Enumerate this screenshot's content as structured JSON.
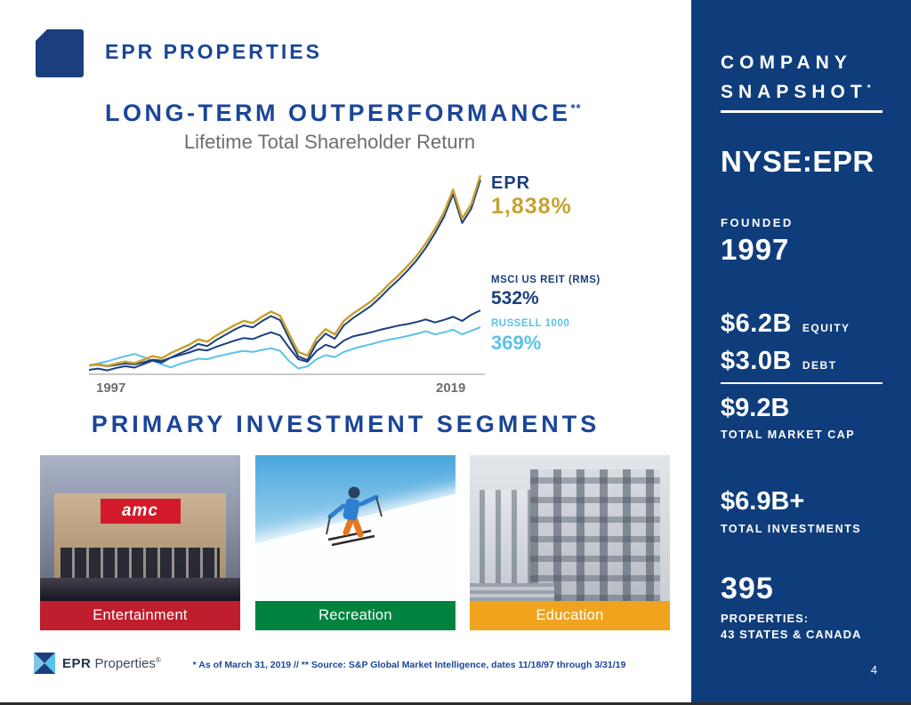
{
  "header": {
    "title": "EPR PROPERTIES"
  },
  "chart_section": {
    "title": "LONG-TERM OUTPERFORMANCE",
    "title_note": "**",
    "subtitle": "Lifetime Total Shareholder Return"
  },
  "chart_data": {
    "type": "line",
    "title": "Lifetime Total Shareholder Return",
    "x_range": [
      1997,
      2019
    ],
    "x_tick_labels": [
      "1997",
      "2019"
    ],
    "ylim": [
      -60,
      1900
    ],
    "grid": false,
    "legend_position": "right-of-line-ends",
    "series": [
      {
        "name": "EPR",
        "final_label": "1,838%",
        "final_value": 1838,
        "color": "#c7a230",
        "values": [
          0,
          12,
          -5,
          18,
          35,
          22,
          55,
          90,
          70,
          120,
          160,
          200,
          250,
          230,
          290,
          340,
          390,
          430,
          410,
          470,
          520,
          480,
          300,
          130,
          95,
          260,
          350,
          300,
          430,
          500,
          560,
          620,
          700,
          790,
          870,
          960,
          1060,
          1180,
          1320,
          1480,
          1700,
          1420,
          1560,
          1838
        ]
      },
      {
        "name": "MSCI US REIT (RMS)",
        "final_label": "532%",
        "final_value": 532,
        "color": "#1b3f7e",
        "values": [
          0,
          6,
          -8,
          5,
          18,
          10,
          30,
          55,
          45,
          75,
          100,
          125,
          155,
          145,
          180,
          210,
          240,
          265,
          255,
          290,
          320,
          290,
          170,
          60,
          35,
          140,
          200,
          170,
          240,
          280,
          300,
          320,
          345,
          365,
          385,
          400,
          420,
          445,
          415,
          440,
          470,
          430,
          490,
          532
        ]
      },
      {
        "name": "RUSSELL 1000",
        "final_label": "369%",
        "final_value": 369,
        "color": "#5bc2e7",
        "values": [
          0,
          18,
          40,
          65,
          90,
          110,
          80,
          45,
          10,
          -20,
          15,
          40,
          65,
          60,
          85,
          105,
          125,
          140,
          130,
          150,
          165,
          140,
          40,
          -30,
          -10,
          60,
          100,
          80,
          130,
          160,
          185,
          205,
          230,
          250,
          265,
          285,
          305,
          330,
          300,
          320,
          345,
          300,
          335,
          369
        ]
      }
    ]
  },
  "segments": {
    "title": "PRIMARY INVESTMENT SEGMENTS",
    "items": [
      {
        "label": "Entertainment",
        "color": "#bf1e2e",
        "photo": "amc-theatre-at-dusk",
        "sign_text": "amc"
      },
      {
        "label": "Recreation",
        "color": "#00833e",
        "photo": "skier-on-snow-slope"
      },
      {
        "label": "Education",
        "color": "#f0a31d",
        "photo": "school-building"
      }
    ]
  },
  "footer": {
    "logo_text_bold": "EPR",
    "logo_text_light": "Properties",
    "logo_reg": "®",
    "footnote": "* As of March 31, 2019 // ** Source: S&P Global Market Intelligence, dates 11/18/97 through 3/31/19"
  },
  "sidebar": {
    "title_line1": "COMPANY",
    "title_line2": "SNAPSHOT",
    "title_note": "*",
    "ticker": "NYSE:EPR",
    "founded_label": "FOUNDED",
    "founded_value": "1997",
    "equity_value": "$6.2B",
    "equity_label": "EQUITY",
    "debt_value": "$3.0B",
    "debt_label": "DEBT",
    "market_cap_value": "$9.2B",
    "market_cap_label": "TOTAL MARKET CAP",
    "investments_value": "$6.9B+",
    "investments_label": "TOTAL INVESTMENTS",
    "properties_value": "395",
    "properties_label1": "PROPERTIES:",
    "properties_label2": "43 STATES & CANADA",
    "page_number": "4"
  },
  "theme": {
    "navy": "#1b3f7e",
    "heading_blue": "#1a4599",
    "sidebar_navy": "#0f3d7c",
    "gold": "#c7a230",
    "light_blue": "#5bc2e7",
    "gray_text": "#6d6e71",
    "red": "#bf1e2e",
    "green": "#00833e",
    "yellow": "#f0a31d"
  }
}
